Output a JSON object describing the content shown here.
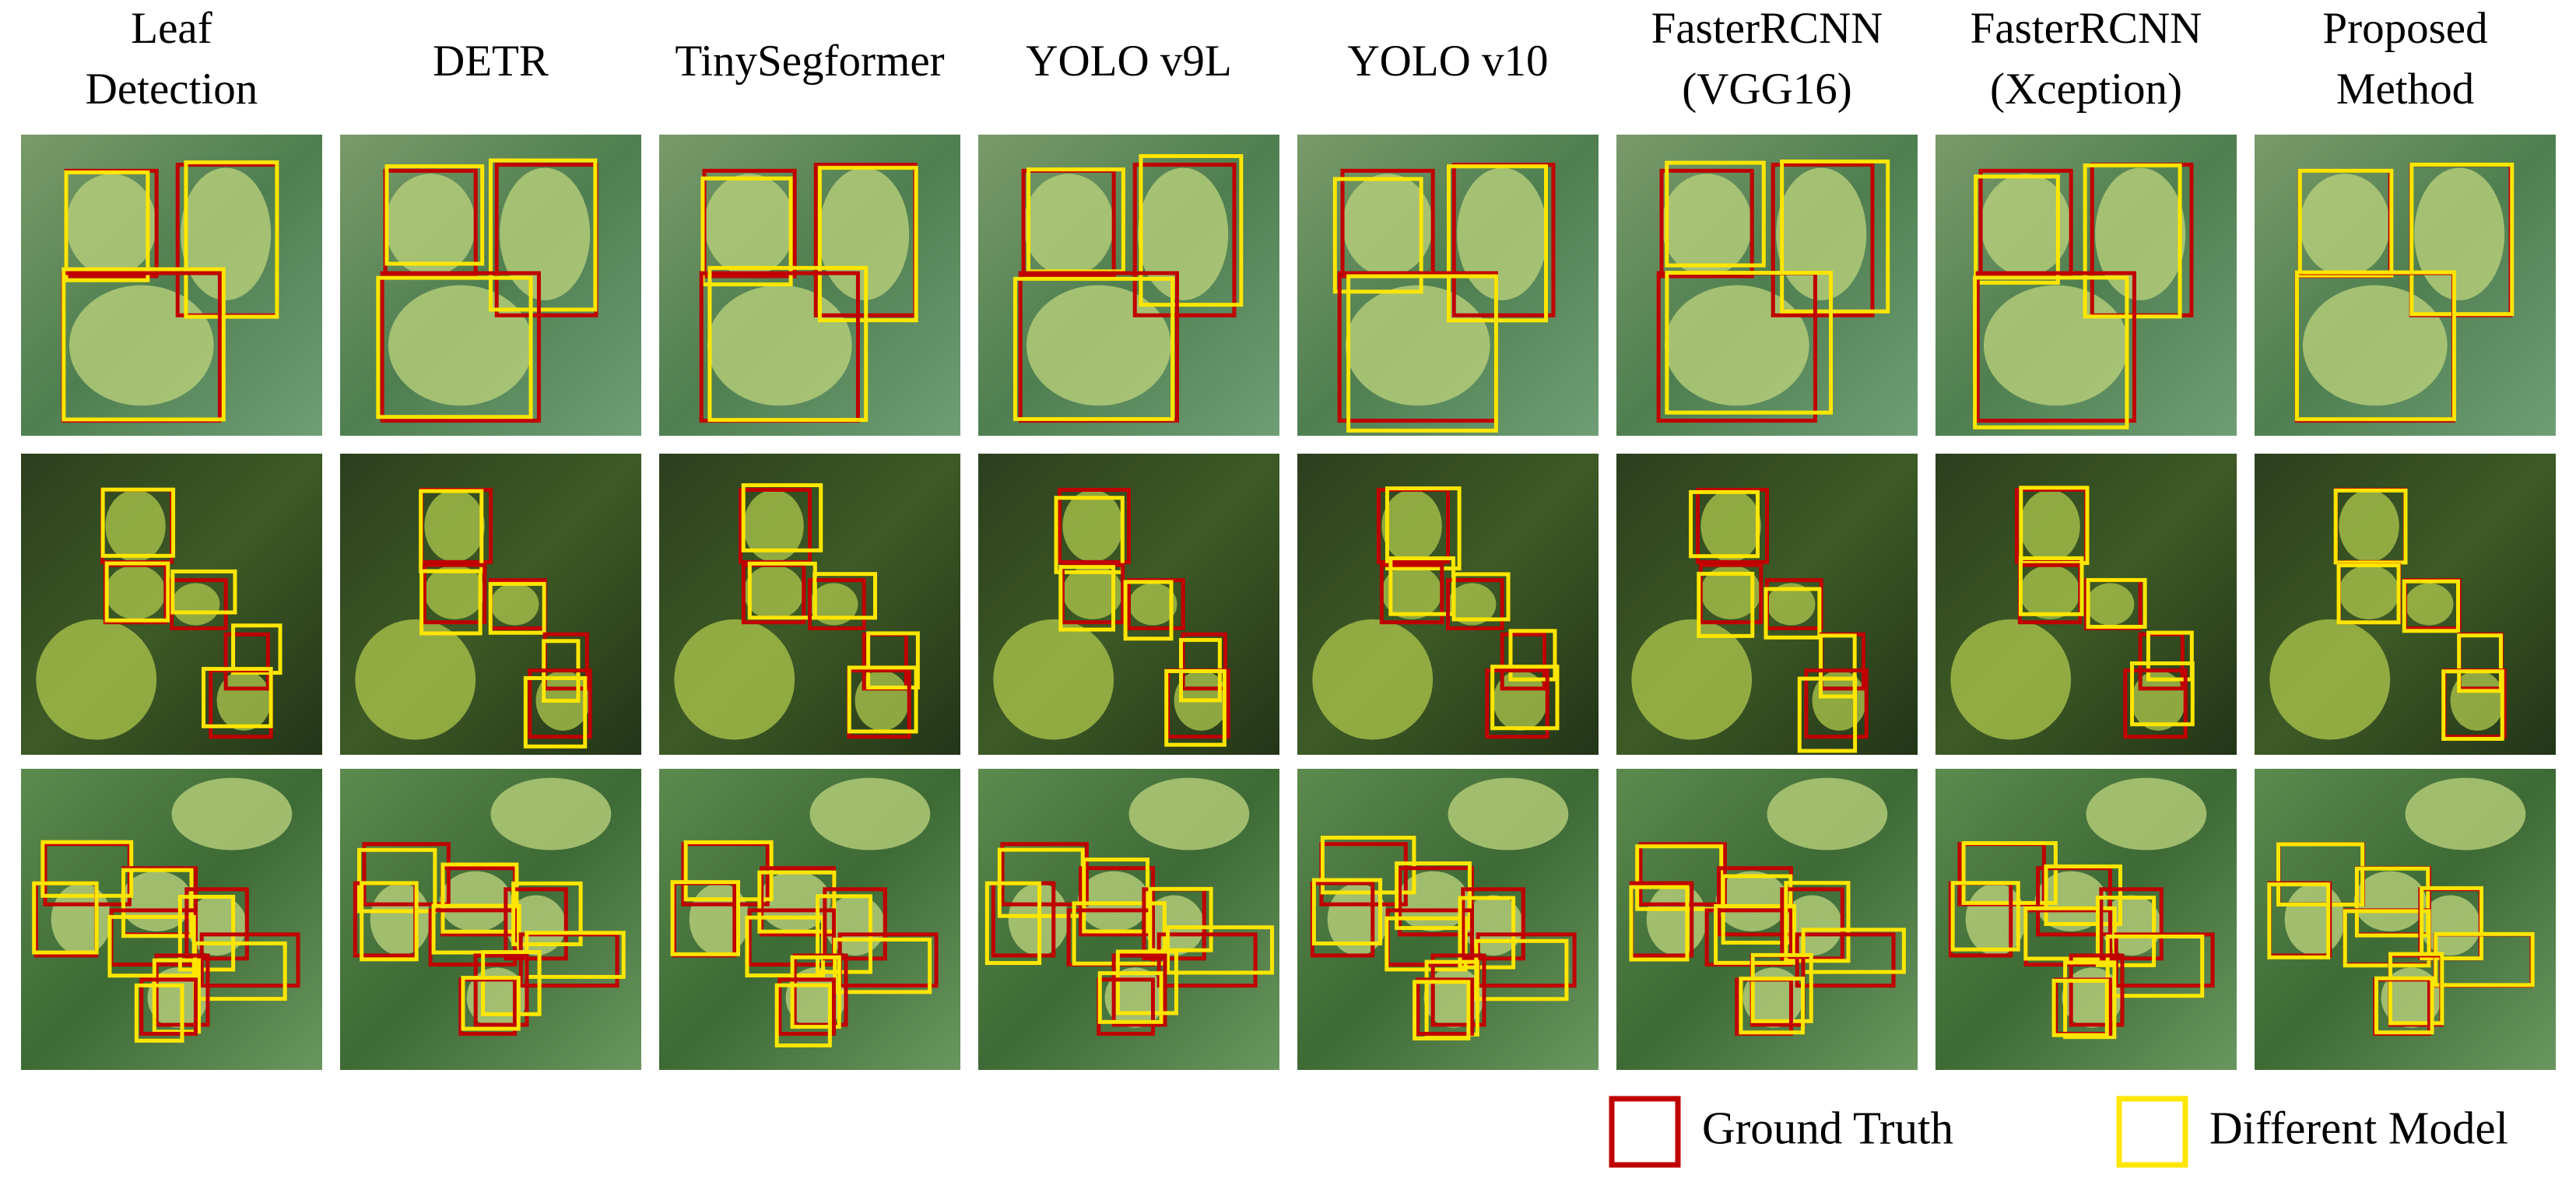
{
  "columns": [
    {
      "lines": [
        "Leaf",
        "Detection"
      ]
    },
    {
      "lines": [
        "DETR"
      ]
    },
    {
      "lines": [
        "TinySegformer"
      ]
    },
    {
      "lines": [
        "YOLO v9L"
      ]
    },
    {
      "lines": [
        "YOLO v10"
      ]
    },
    {
      "lines": [
        "FasterRCNN",
        "(VGG16)"
      ]
    },
    {
      "lines": [
        "FasterRCNN",
        "(Xception)"
      ]
    },
    {
      "lines": [
        "Proposed",
        "Method"
      ]
    }
  ],
  "legend": [
    {
      "label": "Ground Truth"
    },
    {
      "label": "Different Model"
    }
  ]
}
